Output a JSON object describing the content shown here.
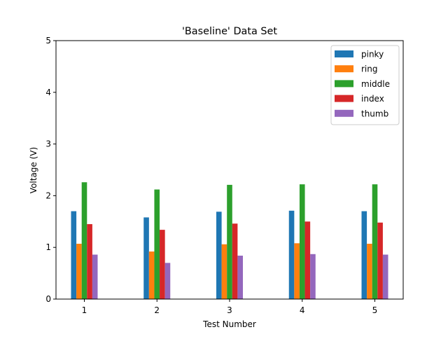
{
  "chart_data": {
    "type": "bar",
    "title": "'Baseline' Data Set",
    "xlabel": "Test Number",
    "ylabel": "Voltage (V)",
    "categories": [
      "1",
      "2",
      "3",
      "4",
      "5"
    ],
    "ylim": [
      0,
      5
    ],
    "yticks": [
      "0",
      "1",
      "2",
      "3",
      "4",
      "5"
    ],
    "grid": false,
    "legend_position": "top-right",
    "series": [
      {
        "name": "pinky",
        "color": "#1f77b4",
        "values": [
          1.7,
          1.58,
          1.69,
          1.71,
          1.7
        ]
      },
      {
        "name": "ring",
        "color": "#ff7f0e",
        "values": [
          1.07,
          0.92,
          1.06,
          1.08,
          1.07
        ]
      },
      {
        "name": "middle",
        "color": "#2ca02c",
        "values": [
          2.26,
          2.12,
          2.21,
          2.22,
          2.22
        ]
      },
      {
        "name": "index",
        "color": "#d62728",
        "values": [
          1.45,
          1.34,
          1.46,
          1.5,
          1.48
        ]
      },
      {
        "name": "thumb",
        "color": "#9467bd",
        "values": [
          0.86,
          0.7,
          0.84,
          0.87,
          0.86
        ]
      }
    ]
  }
}
